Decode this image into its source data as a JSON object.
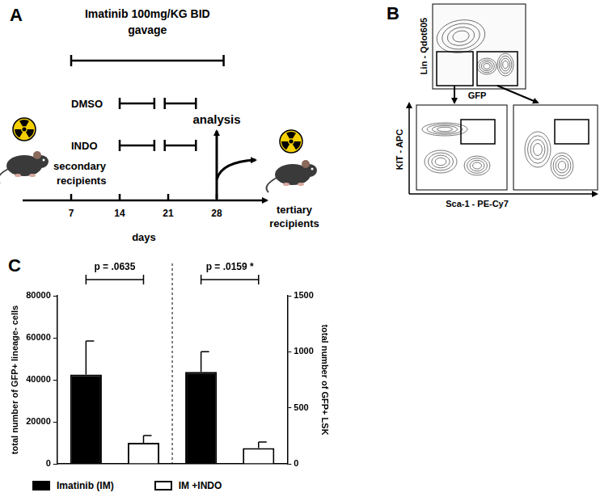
{
  "panels": {
    "A": {
      "letter": "A",
      "treatment": [
        "Imatinib 100mg/KG BID",
        "gavage"
      ],
      "treatment_days": [
        7,
        29
      ],
      "arms": [
        {
          "name": "DMSO",
          "days": [
            [
              14,
              19
            ],
            [
              20.5,
              25
            ]
          ]
        },
        {
          "name": "INDO",
          "days": [
            [
              14,
              19
            ],
            [
              20.5,
              25
            ]
          ]
        }
      ],
      "analysis": "analysis",
      "analysis_day": 28,
      "start": [
        "secondary",
        "recipients"
      ],
      "end": [
        "tertiary",
        "recipients"
      ],
      "axis_label": "days",
      "ticks": [
        7,
        14,
        21,
        28
      ]
    },
    "B": {
      "letter": "B",
      "top_y": "Lin - Qdot605",
      "top_x": "GFP",
      "bottom_y": "KIT - APC",
      "bottom_x": "Sca-1 - PE-Cy7"
    },
    "C": {
      "letter": "C"
    }
  },
  "chart_data": {
    "type": "bar",
    "categories": [
      null,
      null,
      null,
      null
    ],
    "series": [
      {
        "name": "Imatinib (IM)",
        "color": "#000000",
        "values": [
          42500,
          null,
          null,
          null
        ],
        "errors": [
          16000,
          null,
          null,
          null
        ]
      },
      {
        "name": "IM +INDO",
        "color": "#ffffff",
        "values": [
          null,
          10000,
          null,
          null
        ],
        "errors": [
          null,
          3500,
          null,
          null
        ]
      },
      {
        "name": "Imatinib (IM)",
        "color": "#000000",
        "values": [
          null,
          null,
          820,
          null
        ],
        "errors": [
          null,
          null,
          180,
          null
        ],
        "axis": "y2"
      },
      {
        "name": "IM +INDO",
        "color": "#ffffff",
        "values": [
          null,
          null,
          null,
          140
        ],
        "errors": [
          null,
          null,
          null,
          55
        ],
        "axis": "y2"
      }
    ],
    "ylabel": "total number of GFP+ lineage- cells",
    "y2label": "total number of GFP+ LSK",
    "ylim": [
      0,
      80000
    ],
    "yticks": [
      0,
      20000,
      40000,
      60000,
      80000
    ],
    "y2lim": [
      0,
      1500
    ],
    "y2ticks": [
      0,
      500,
      1000,
      1500
    ],
    "annotations": [
      "p = .0635",
      "p = .0159 *"
    ],
    "legend": "bottom",
    "grid": false,
    "tick_labels": "y"
  }
}
